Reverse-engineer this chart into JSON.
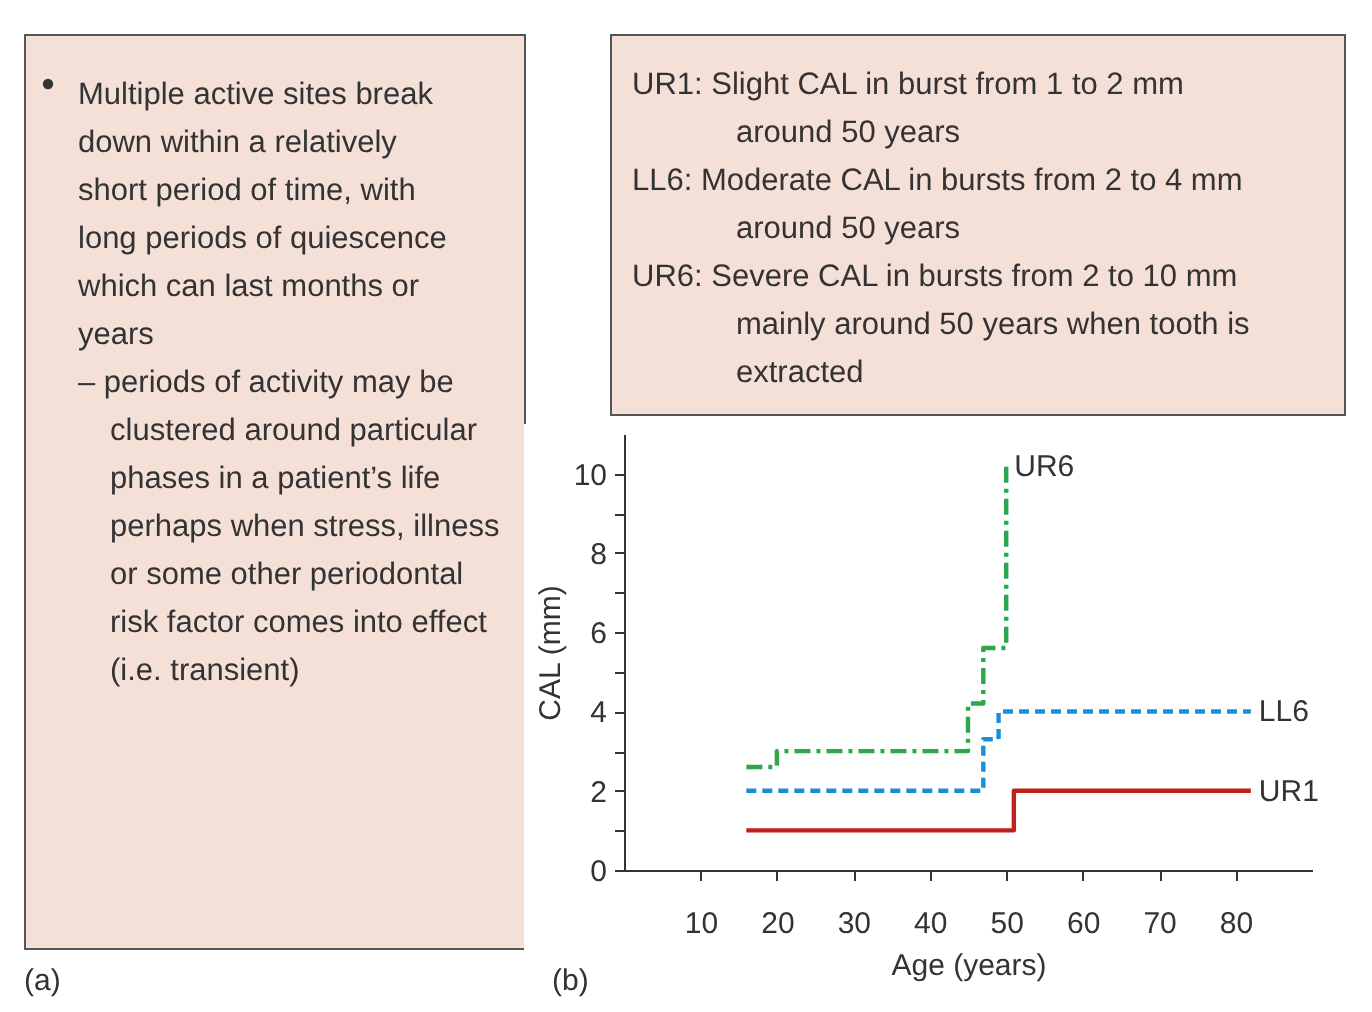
{
  "chart_data": [
    {
      "type": "other",
      "annotations": [
        "Multiple active sites break down within a relatively short period of time, with long periods of quiescence which can last months or years",
        "– periods of activity may be clustered around particular phases in a patient’s life perhaps when stress, illness or some other periodontal risk factor comes into effect (i.e. transient)",
        "(a)"
      ]
    },
    {
      "type": "step",
      "xlabel": "Age (years)",
      "ylabel": "CAL (mm)",
      "annotations": [
        "UR1:  Slight CAL in burst from 1 to 2 mm around 50 years",
        "LL6:  Moderate CAL in bursts from 2 to 4 mm around 50 years",
        "UR6: Severe CAL in bursts from 2 to 10 mm mainly around 50 years when tooth is extracted",
        "(b)"
      ],
      "xlim": [
        0,
        90
      ],
      "ylim": [
        0,
        11
      ],
      "xticks": [
        10,
        20,
        30,
        40,
        50,
        60,
        70,
        80
      ],
      "yticks": [
        0,
        {
          "value": 1,
          "label": null
        },
        2,
        {
          "value": 3,
          "label": null
        },
        4,
        {
          "value": 5,
          "label": null
        },
        6,
        {
          "value": 7,
          "label": null
        },
        8,
        {
          "value": 9,
          "label": null
        },
        10
      ],
      "grid": false,
      "series": [
        {
          "name": "UR1",
          "color": "#c0201e",
          "line_style": "solid",
          "x": [
            16,
            51,
            82
          ],
          "values": [
            1,
            2,
            2
          ]
        },
        {
          "name": "LL6",
          "color": "#1a8fd8",
          "line_style": "dashed",
          "x": [
            16,
            47,
            49,
            82
          ],
          "values": [
            2,
            3.3,
            4,
            4
          ]
        },
        {
          "name": "UR6",
          "color": "#2aa84a",
          "line_style": "dotted",
          "x": [
            16,
            20,
            45,
            47,
            50
          ],
          "values": [
            2.6,
            3,
            4.2,
            5.6,
            10.2
          ]
        }
      ]
    }
  ]
}
